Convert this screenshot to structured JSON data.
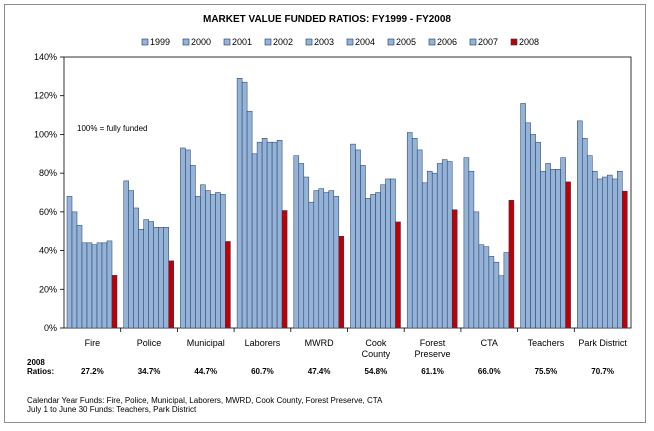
{
  "chart_data": {
    "type": "bar",
    "title": "MARKET VALUE FUNDED RATIOS: FY1999 - FY2008",
    "categories": [
      "Fire",
      "Police",
      "Municipal",
      "Laborers",
      "MWRD",
      "Cook County",
      "Forest Preserve",
      "CTA",
      "Teachers",
      "Park District"
    ],
    "category_lines": [
      [
        "Fire"
      ],
      [
        "Police"
      ],
      [
        "Municipal"
      ],
      [
        "Laborers"
      ],
      [
        "MWRD"
      ],
      [
        "Cook",
        "County"
      ],
      [
        "Forest",
        "Preserve"
      ],
      [
        "CTA"
      ],
      [
        "Teachers"
      ],
      [
        "Park District"
      ]
    ],
    "ylim": [
      0,
      140
    ],
    "yticks": [
      0,
      20,
      40,
      60,
      80,
      100,
      120,
      140
    ],
    "ytick_labels": [
      "0%",
      "20%",
      "40%",
      "60%",
      "80%",
      "100%",
      "120%",
      "140%"
    ],
    "grid": false,
    "legend_position": "top",
    "colors": {
      "years": "#95b3d7",
      "latest": "#c00000"
    },
    "series": [
      {
        "name": "1999",
        "values": [
          68,
          76,
          93,
          129,
          89,
          95,
          101,
          88,
          116,
          107
        ]
      },
      {
        "name": "2000",
        "values": [
          60,
          71,
          92,
          127,
          85,
          92,
          98,
          81,
          106,
          98
        ]
      },
      {
        "name": "2001",
        "values": [
          53,
          62,
          84,
          112,
          78,
          84,
          92,
          60,
          100,
          89
        ]
      },
      {
        "name": "2002",
        "values": [
          44,
          51,
          68,
          90,
          65,
          67,
          75,
          43,
          96,
          81
        ]
      },
      {
        "name": "2003",
        "values": [
          44,
          56,
          74,
          96,
          71,
          69,
          81,
          42,
          81,
          77
        ]
      },
      {
        "name": "2004",
        "values": [
          43,
          55,
          71,
          98,
          72,
          70,
          80,
          37,
          85,
          78
        ]
      },
      {
        "name": "2005",
        "values": [
          44,
          52,
          69,
          96,
          70,
          74,
          85,
          34,
          82,
          79
        ]
      },
      {
        "name": "2006",
        "values": [
          44,
          52,
          70,
          96,
          71,
          77,
          87,
          27,
          82,
          77
        ]
      },
      {
        "name": "2007",
        "values": [
          45,
          52,
          69,
          97,
          68,
          77,
          86,
          39,
          88,
          81
        ]
      },
      {
        "name": "2008",
        "values": [
          27.2,
          34.7,
          44.7,
          60.7,
          47.4,
          54.8,
          61.1,
          66.0,
          75.5,
          70.7
        ]
      }
    ],
    "annotation": "100% = fully funded",
    "ratios_label_line1": "2008",
    "ratios_label_line2": "Ratios:",
    "ratios": [
      "27.2%",
      "34.7%",
      "44.7%",
      "60.7%",
      "47.4%",
      "54.8%",
      "61.1%",
      "66.0%",
      "75.5%",
      "70.7%"
    ]
  },
  "footnotes": {
    "line1": "Calendar Year Funds: Fire, Police, Municipal, Laborers, MWRD, Cook County, Forest Preserve, CTA",
    "line2": "July 1 to June 30 Funds: Teachers, Park District"
  }
}
